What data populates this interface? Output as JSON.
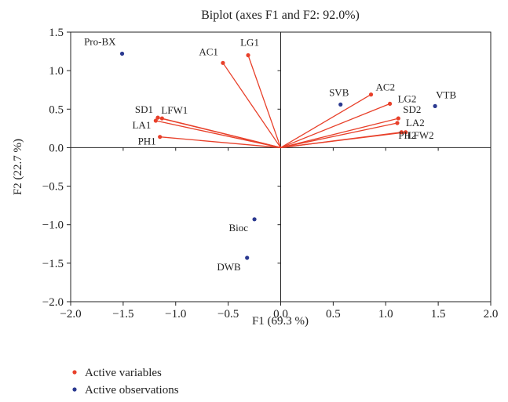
{
  "chart_data": {
    "type": "scatter",
    "title": "Biplot (axes F1 and F2: 92.0%)",
    "xlabel": "F1 (69.3 %)",
    "ylabel": "F2 (22.7 %)",
    "xlim": [
      -2.0,
      2.0
    ],
    "ylim": [
      -2.0,
      1.5
    ],
    "xticks": [
      -2.0,
      -1.5,
      -1.0,
      -0.5,
      0.0,
      0.5,
      1.0,
      1.5,
      2.0
    ],
    "yticks": [
      -2.0,
      -1.5,
      -1.0,
      -0.5,
      0.0,
      0.5,
      1.0,
      1.5
    ],
    "xtick_labels": [
      "−2.0",
      "−1.5",
      "−1.0",
      "−0.5",
      "0.0",
      "0.5",
      "1.0",
      "1.5",
      "2.0"
    ],
    "ytick_labels": [
      "−2.0",
      "−1.5",
      "−1.0",
      "−0.5",
      "0.0",
      "0.5",
      "1.0",
      "1.5"
    ],
    "grid": false,
    "legend_position": "bottom-left",
    "colors": {
      "variables": "#e8402a",
      "observations": "#2b3990",
      "axes": "#222222"
    },
    "series": [
      {
        "name": "Active variables",
        "points": [
          {
            "label": "LG1",
            "x": -0.31,
            "y": 1.2
          },
          {
            "label": "AC1",
            "x": -0.55,
            "y": 1.1
          },
          {
            "label": "SD1",
            "x": -1.17,
            "y": 0.39
          },
          {
            "label": "LFW1",
            "x": -1.13,
            "y": 0.38
          },
          {
            "label": "LA1",
            "x": -1.19,
            "y": 0.35
          },
          {
            "label": "PH1",
            "x": -1.15,
            "y": 0.14
          },
          {
            "label": "AC2",
            "x": 0.86,
            "y": 0.69
          },
          {
            "label": "LG2",
            "x": 1.04,
            "y": 0.57
          },
          {
            "label": "SD2",
            "x": 1.12,
            "y": 0.38
          },
          {
            "label": "LA2",
            "x": 1.11,
            "y": 0.32
          },
          {
            "label": "PH2",
            "x": 1.15,
            "y": 0.2
          },
          {
            "label": "LFW2",
            "x": 1.19,
            "y": 0.2
          }
        ]
      },
      {
        "name": "Active observations",
        "points": [
          {
            "label": "Pro-BX",
            "x": -1.51,
            "y": 1.22
          },
          {
            "label": "SVB",
            "x": 0.57,
            "y": 0.56
          },
          {
            "label": "VTB",
            "x": 1.47,
            "y": 0.54
          },
          {
            "label": "Bioc",
            "x": -0.25,
            "y": -0.93
          },
          {
            "label": "DWB",
            "x": -0.32,
            "y": -1.43
          }
        ]
      }
    ]
  }
}
